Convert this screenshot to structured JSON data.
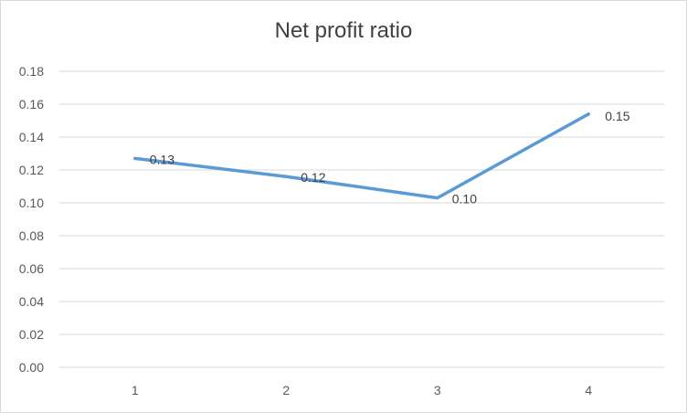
{
  "chart_data": {
    "type": "line",
    "title": "Net profit ratio",
    "xlabel": "",
    "ylabel": "",
    "categories": [
      "1",
      "2",
      "3",
      "4"
    ],
    "series": [
      {
        "values": [
          0.127,
          0.116,
          0.103,
          0.154
        ],
        "data_labels": [
          "0.13",
          "0.12",
          "0.10",
          "0.15"
        ],
        "color": "#5b9bd5"
      }
    ],
    "ylim": [
      0,
      0.18
    ],
    "y_ticks": [
      "0.00",
      "0.02",
      "0.04",
      "0.06",
      "0.08",
      "0.10",
      "0.12",
      "0.14",
      "0.16",
      "0.18"
    ],
    "grid": true,
    "legend": "none",
    "gridline_color": "#d9d9d9",
    "text_color": "#595959",
    "title_color": "#404040"
  }
}
